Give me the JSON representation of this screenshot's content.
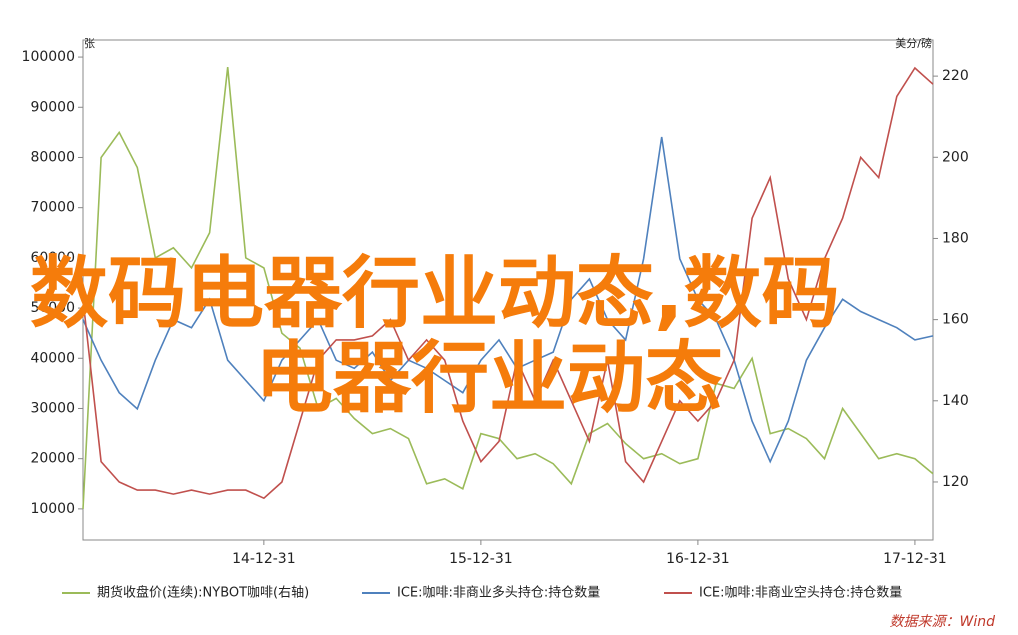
{
  "chart_data": {
    "type": "line",
    "y_unit": "张",
    "y2_unit": "美分/磅",
    "categories": [
      null,
      null,
      null,
      null,
      null,
      null,
      null,
      null,
      null,
      null,
      "14-12-31",
      null,
      null,
      null,
      null,
      null,
      null,
      null,
      null,
      null,
      null,
      null,
      "15-12-31",
      null,
      null,
      null,
      null,
      null,
      null,
      null,
      null,
      null,
      null,
      null,
      "16-12-31",
      null,
      null,
      null,
      null,
      null,
      null,
      null,
      null,
      null,
      null,
      null,
      "17-12-31",
      null
    ],
    "ylim": [
      3800,
      103400
    ],
    "yticks": [
      10000,
      20000,
      30000,
      40000,
      50000,
      60000,
      70000,
      80000,
      90000,
      100000
    ],
    "y2lim": [
      105.7,
      228.9
    ],
    "y2ticks": [
      120,
      140,
      160,
      180,
      200,
      220
    ],
    "series": [
      {
        "name": "期货收盘价(连续):NYBOT咖啡(右轴)",
        "color": "#9bbb59",
        "axis": "y",
        "values": [
          10000,
          80000,
          85000,
          78000,
          60000,
          62000,
          58000,
          65000,
          98000,
          60000,
          58000,
          45000,
          42000,
          30000,
          32000,
          28000,
          25000,
          26000,
          24000,
          15000,
          16000,
          14000,
          25000,
          24000,
          20000,
          21000,
          19000,
          15000,
          25000,
          27000,
          23000,
          20000,
          21000,
          19000,
          20000,
          35000,
          34000,
          40000,
          25000,
          26000,
          24000,
          20000,
          30000,
          25000,
          20000,
          21000,
          20000,
          17000
        ]
      },
      {
        "name": "ICE:咖啡:非商业多头持仓:持仓数量",
        "color": "#4f81bd",
        "axis": "y2",
        "values": [
          160,
          150,
          142,
          138,
          150,
          160,
          158,
          165,
          150,
          145,
          140,
          150,
          155,
          160,
          150,
          148,
          152,
          145,
          150,
          148,
          145,
          142,
          150,
          155,
          148,
          150,
          152,
          165,
          170,
          160,
          155,
          175,
          205,
          175,
          165,
          160,
          150,
          135,
          125,
          135,
          150,
          158,
          165,
          162,
          160,
          158,
          155,
          156
        ]
      },
      {
        "name": "ICE:咖啡:非商业空头持仓:持仓数量",
        "color": "#c0504d",
        "axis": "y2",
        "values": [
          165,
          125,
          120,
          118,
          118,
          117,
          118,
          117,
          118,
          118,
          116,
          120,
          135,
          150,
          155,
          155,
          156,
          160,
          150,
          155,
          150,
          135,
          125,
          130,
          150,
          140,
          150,
          140,
          130,
          150,
          125,
          120,
          130,
          140,
          135,
          140,
          150,
          185,
          195,
          170,
          160,
          175,
          185,
          200,
          195,
          215,
          222,
          218
        ]
      }
    ],
    "annotations": [
      "数码电器行业动态,数码",
      "电器行业动态"
    ],
    "source": "数据来源：Wind"
  }
}
